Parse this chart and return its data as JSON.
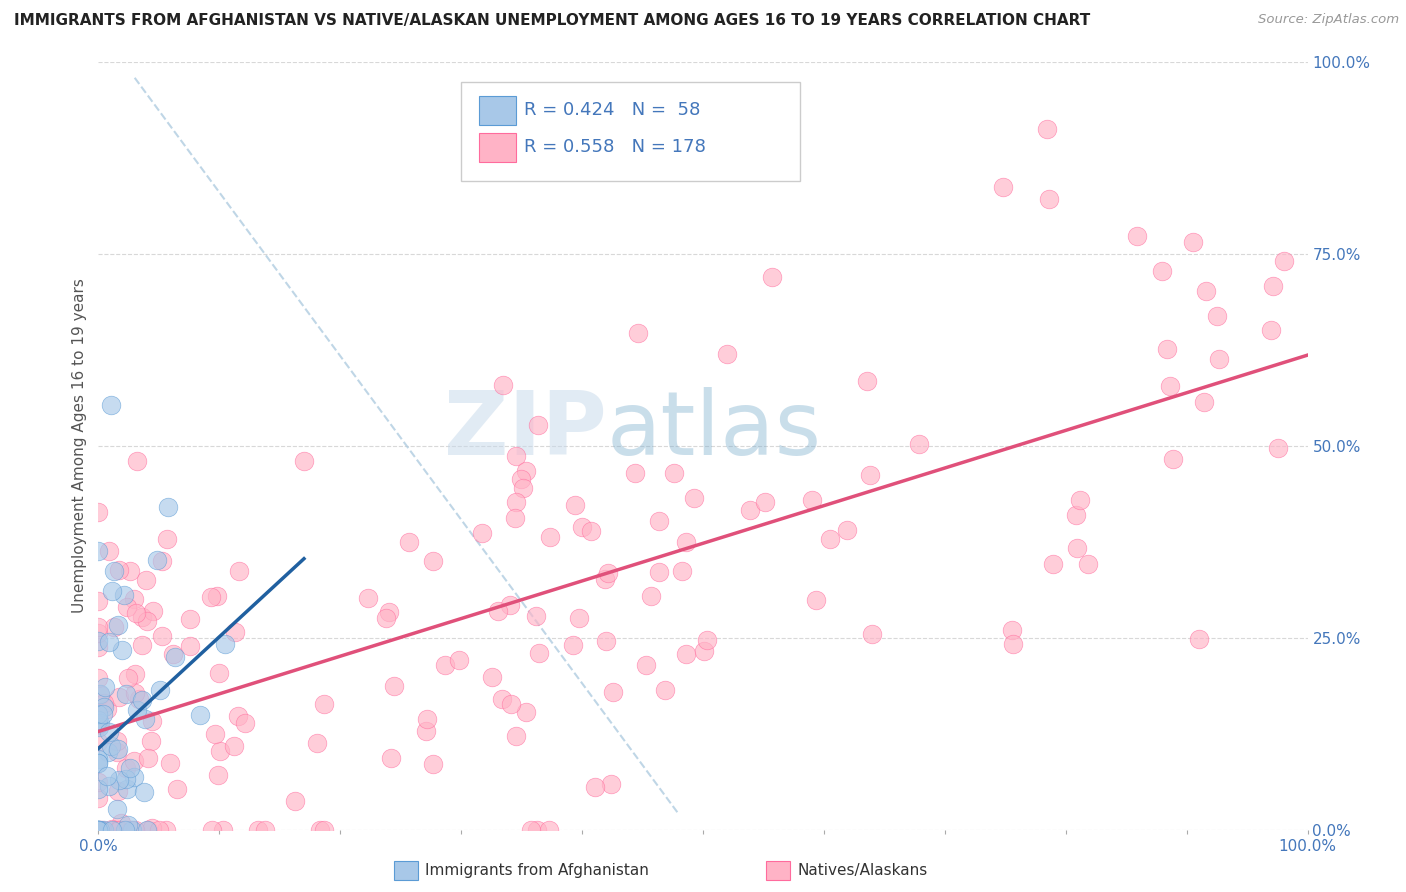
{
  "title": "IMMIGRANTS FROM AFGHANISTAN VS NATIVE/ALASKAN UNEMPLOYMENT AMONG AGES 16 TO 19 YEARS CORRELATION CHART",
  "source": "Source: ZipAtlas.com",
  "ylabel": "Unemployment Among Ages 16 to 19 years",
  "xlim": [
    0.0,
    1.0
  ],
  "ylim": [
    0.0,
    1.0
  ],
  "xtick_positions": [
    0.0,
    0.1,
    0.2,
    0.3,
    0.4,
    0.5,
    0.6,
    0.7,
    0.8,
    0.9,
    1.0
  ],
  "xtick_labels": [
    "0.0%",
    "",
    "",
    "",
    "",
    "",
    "",
    "",
    "",
    "",
    "100.0%"
  ],
  "ytick_positions": [
    0.0,
    0.25,
    0.5,
    0.75,
    1.0
  ],
  "ytick_labels": [
    "0.0%",
    "25.0%",
    "50.0%",
    "75.0%",
    "100.0%"
  ],
  "watermark_zip": "ZIP",
  "watermark_atlas": "atlas",
  "legend_line1": "R = 0.424   N =  58",
  "legend_line2": "R = 0.558   N = 178",
  "color_blue_fill": "#a8c8e8",
  "color_blue_edge": "#5b9bd5",
  "color_pink_fill": "#ffb3c6",
  "color_pink_edge": "#ff6b9d",
  "color_line_blue": "#2060a0",
  "color_line_pink": "#e0507a",
  "color_dashed": "#b0cce0",
  "background_color": "#ffffff",
  "grid_color": "#d8d8d8",
  "title_color": "#222222",
  "axis_label_color": "#4477bb",
  "ylabel_color": "#555555",
  "legend_label_color": "#222222"
}
